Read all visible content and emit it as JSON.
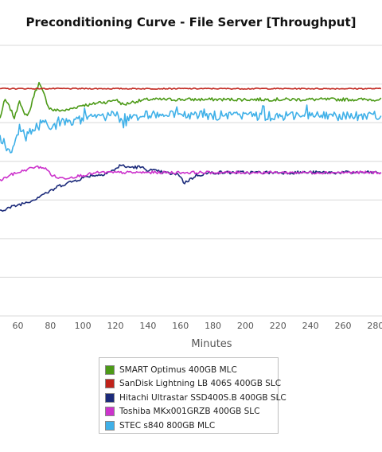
{
  "chart_data": {
    "type": "line",
    "title": "Preconditioning Curve - File Server [Throughput]",
    "xlabel": "Minutes",
    "ylabel": "",
    "x_ticks": [
      60,
      80,
      100,
      120,
      140,
      160,
      180,
      200,
      220,
      240,
      260,
      280
    ],
    "xlim": [
      49,
      284
    ],
    "grid": true,
    "legend_placement": "bottom",
    "series": [
      {
        "name": "SMART Optimus 400GB MLC",
        "color": "#4c9a17",
        "x": [
          49,
          52,
          55,
          58,
          61,
          64,
          67,
          70,
          73,
          76,
          79,
          82,
          86,
          90,
          95,
          100,
          105,
          110,
          115,
          120,
          125,
          130,
          140,
          150,
          160,
          180,
          200,
          220,
          240,
          260,
          284
        ],
        "y": [
          0.73,
          0.8,
          0.77,
          0.73,
          0.8,
          0.74,
          0.75,
          0.82,
          0.86,
          0.82,
          0.77,
          0.76,
          0.76,
          0.76,
          0.77,
          0.78,
          0.78,
          0.79,
          0.79,
          0.8,
          0.78,
          0.79,
          0.8,
          0.8,
          0.8,
          0.8,
          0.8,
          0.8,
          0.8,
          0.8,
          0.8
        ]
      },
      {
        "name": "SanDisk Lightning LB 406S 400GB SLC",
        "color": "#c0231b",
        "x": [
          49,
          60,
          80,
          100,
          120,
          140,
          160,
          180,
          200,
          220,
          240,
          260,
          284
        ],
        "y": [
          0.84,
          0.84,
          0.84,
          0.84,
          0.84,
          0.84,
          0.84,
          0.84,
          0.84,
          0.84,
          0.84,
          0.84,
          0.84
        ]
      },
      {
        "name": "Hitachi Ultrastar SSD400S.B 400GB SLC",
        "color": "#1b2a7a",
        "x": [
          49,
          55,
          60,
          65,
          70,
          75,
          80,
          85,
          90,
          95,
          100,
          105,
          110,
          115,
          120,
          123,
          126,
          130,
          135,
          140,
          150,
          160,
          162,
          170,
          180,
          200,
          220,
          240,
          260,
          284
        ],
        "y": [
          0.39,
          0.4,
          0.41,
          0.42,
          0.43,
          0.45,
          0.46,
          0.48,
          0.49,
          0.5,
          0.51,
          0.52,
          0.52,
          0.53,
          0.54,
          0.56,
          0.55,
          0.55,
          0.55,
          0.54,
          0.53,
          0.52,
          0.49,
          0.52,
          0.53,
          0.53,
          0.53,
          0.53,
          0.53,
          0.53
        ]
      },
      {
        "name": "Toshiba MKx001GRZB 400GB SLC",
        "color": "#cc33cc",
        "x": [
          49,
          55,
          60,
          65,
          70,
          75,
          78,
          81,
          85,
          90,
          100,
          110,
          120,
          140,
          160,
          180,
          200,
          220,
          240,
          260,
          284
        ],
        "y": [
          0.5,
          0.52,
          0.53,
          0.54,
          0.55,
          0.55,
          0.54,
          0.52,
          0.51,
          0.51,
          0.52,
          0.53,
          0.53,
          0.53,
          0.53,
          0.53,
          0.53,
          0.53,
          0.53,
          0.53,
          0.53
        ]
      },
      {
        "name": "STEC s840 800GB MLC",
        "color": "#3fb0e8",
        "x": [
          49,
          52,
          54,
          58,
          61,
          64,
          68,
          72,
          76,
          79,
          82,
          86,
          90,
          95,
          100,
          105,
          110,
          115,
          120,
          125,
          130,
          140,
          150,
          160,
          180,
          200,
          220,
          240,
          260,
          284
        ],
        "y": [
          0.66,
          0.62,
          0.62,
          0.62,
          0.7,
          0.66,
          0.68,
          0.7,
          0.72,
          0.71,
          0.7,
          0.71,
          0.72,
          0.72,
          0.73,
          0.73,
          0.73,
          0.74,
          0.75,
          0.71,
          0.74,
          0.74,
          0.74,
          0.74,
          0.74,
          0.74,
          0.74,
          0.74,
          0.74,
          0.74
        ]
      }
    ]
  }
}
